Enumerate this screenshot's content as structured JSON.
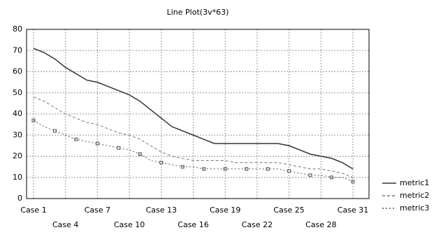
{
  "chart_data": {
    "type": "line",
    "title": "Line Plot(3v*63)",
    "categories": [
      "Case 1",
      null,
      null,
      "Case 4",
      null,
      null,
      "Case 7",
      null,
      null,
      "Case 10",
      null,
      null,
      "Case 13",
      null,
      null,
      "Case 16",
      null,
      null,
      "Case 19",
      null,
      null,
      "Case 22",
      null,
      null,
      "Case 25",
      null,
      null,
      "Case 28",
      null,
      null,
      "Case 31"
    ],
    "series": [
      {
        "name": "metric1",
        "color": "#333333",
        "values": [
          71,
          69,
          66,
          62,
          59,
          56,
          55,
          53,
          51,
          49,
          46,
          42,
          38,
          34,
          32,
          30,
          28,
          26,
          26,
          26,
          26,
          26,
          26,
          26,
          25,
          23,
          21,
          20,
          19,
          17,
          14
        ]
      },
      {
        "name": "metric2",
        "color": "#777777",
        "values": [
          48,
          46,
          43,
          40,
          38,
          36,
          35,
          33,
          31,
          30,
          28,
          25,
          22,
          20,
          19,
          18,
          18,
          18,
          18,
          17,
          17,
          17,
          17,
          17,
          16,
          15,
          14,
          14,
          13,
          12,
          10
        ]
      },
      {
        "name": "metric3",
        "color": "#555555",
        "values": [
          37,
          34,
          32,
          30,
          28,
          27,
          26,
          25,
          24,
          23,
          21,
          18,
          17,
          16,
          15,
          15,
          14,
          14,
          14,
          14,
          14,
          14,
          14,
          14,
          13,
          12,
          11,
          11,
          10,
          10,
          8
        ]
      }
    ],
    "ylim": [
      0,
      80
    ],
    "yticks": [
      0,
      10,
      20,
      30,
      40,
      50,
      60,
      70,
      80
    ],
    "grid": true
  }
}
